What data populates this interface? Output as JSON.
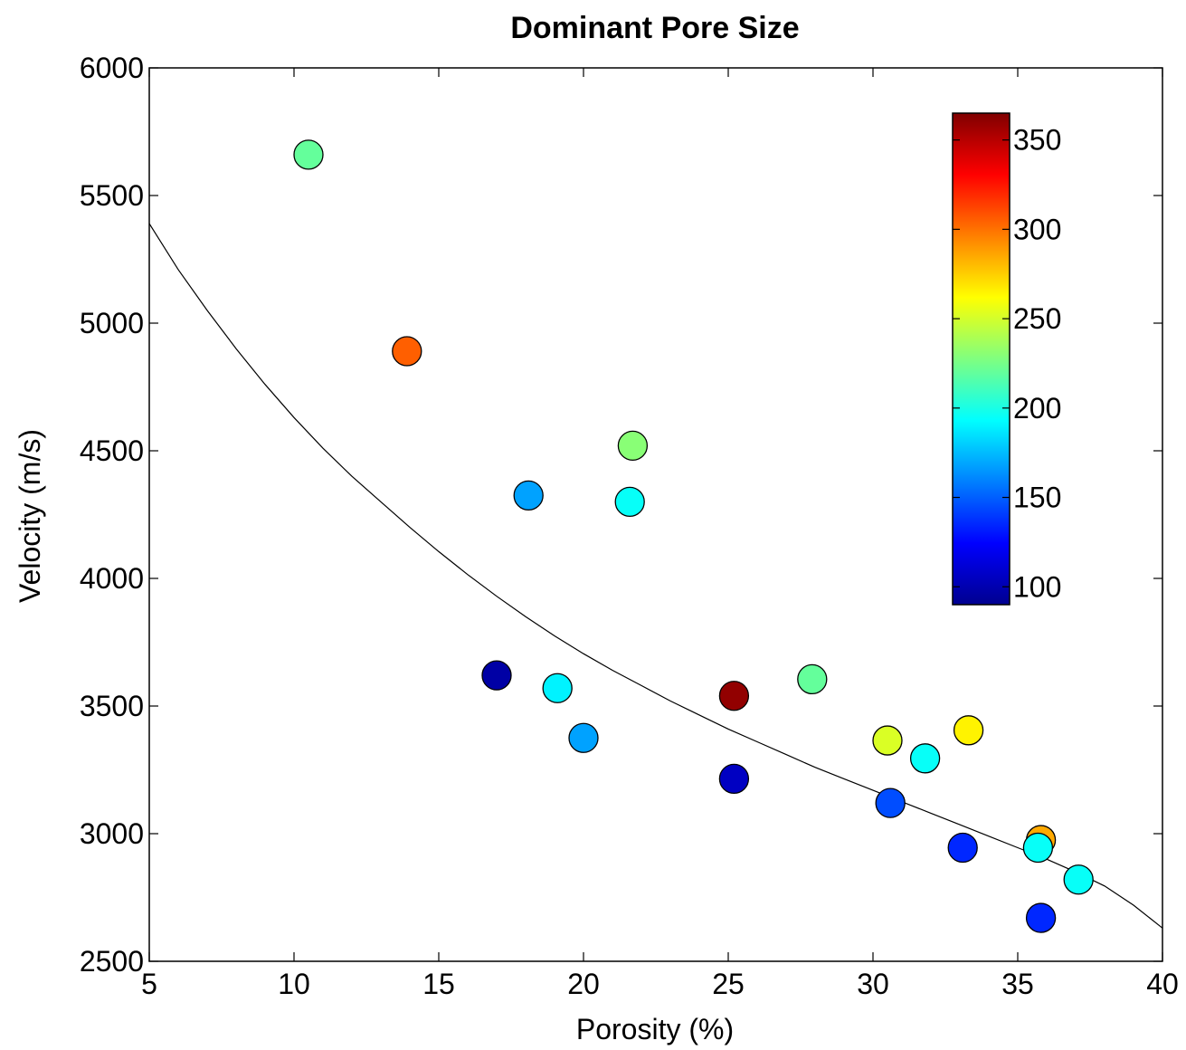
{
  "chart_data": {
    "type": "scatter",
    "title": "Dominant Pore Size",
    "xlabel": "Porosity (%)",
    "ylabel": "Velocity (m/s)",
    "xlim": [
      5,
      40
    ],
    "ylim": [
      2500,
      6000
    ],
    "xticks": [
      "5",
      "10",
      "15",
      "20",
      "25",
      "30",
      "35",
      "40"
    ],
    "yticks": [
      "2500",
      "3000",
      "3500",
      "4000",
      "4500",
      "5000",
      "5500",
      "6000"
    ],
    "grid": false,
    "colormap": "jet",
    "colorbar": {
      "range": [
        90,
        365
      ],
      "ticks": [
        "100",
        "150",
        "200",
        "250",
        "300",
        "350"
      ],
      "placement": "top-right inside axes"
    },
    "points": [
      {
        "x": 10.5,
        "y": 5660,
        "c": 220
      },
      {
        "x": 13.9,
        "y": 4890,
        "c": 305
      },
      {
        "x": 21.7,
        "y": 4520,
        "c": 230
      },
      {
        "x": 18.1,
        "y": 4325,
        "c": 168
      },
      {
        "x": 21.6,
        "y": 4300,
        "c": 195
      },
      {
        "x": 17.0,
        "y": 3620,
        "c": 100
      },
      {
        "x": 19.1,
        "y": 3570,
        "c": 190
      },
      {
        "x": 20.0,
        "y": 3375,
        "c": 168
      },
      {
        "x": 25.2,
        "y": 3540,
        "c": 360
      },
      {
        "x": 25.2,
        "y": 3215,
        "c": 108
      },
      {
        "x": 27.9,
        "y": 3605,
        "c": 220
      },
      {
        "x": 30.5,
        "y": 3365,
        "c": 252
      },
      {
        "x": 31.8,
        "y": 3295,
        "c": 195
      },
      {
        "x": 33.3,
        "y": 3405,
        "c": 265
      },
      {
        "x": 30.6,
        "y": 3120,
        "c": 145
      },
      {
        "x": 33.1,
        "y": 2945,
        "c": 135
      },
      {
        "x": 35.8,
        "y": 2975,
        "c": 285
      },
      {
        "x": 35.7,
        "y": 2945,
        "c": 195
      },
      {
        "x": 37.1,
        "y": 2820,
        "c": 195
      },
      {
        "x": 35.8,
        "y": 2670,
        "c": 135
      }
    ],
    "fit_curve": {
      "x": [
        5,
        6,
        7,
        8,
        9,
        10,
        11,
        12,
        13,
        14,
        15,
        16,
        17,
        18,
        19,
        20,
        21,
        22,
        23,
        24,
        25,
        26,
        27,
        28,
        29,
        30,
        31,
        32,
        33,
        34,
        35,
        36,
        37,
        38,
        39,
        40
      ],
      "y": [
        5390,
        5210,
        5050,
        4900,
        4760,
        4630,
        4510,
        4400,
        4300,
        4200,
        4105,
        4015,
        3930,
        3850,
        3775,
        3705,
        3640,
        3580,
        3520,
        3465,
        3410,
        3360,
        3310,
        3260,
        3215,
        3170,
        3125,
        3080,
        3035,
        2990,
        2945,
        2900,
        2850,
        2795,
        2720,
        2630
      ]
    }
  }
}
